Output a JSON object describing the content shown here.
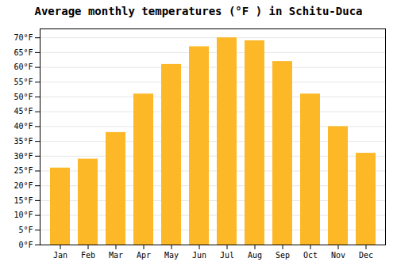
{
  "chart_data": {
    "type": "bar",
    "title": "Average monthly temperatures (°F ) in Schitu-Duca",
    "categories": [
      "Jan",
      "Feb",
      "Mar",
      "Apr",
      "May",
      "Jun",
      "Jul",
      "Aug",
      "Sep",
      "Oct",
      "Nov",
      "Dec"
    ],
    "values": [
      26,
      29,
      38,
      51,
      61,
      67,
      70,
      69,
      62,
      51,
      40,
      31
    ],
    "color": "#FDB827",
    "ylim": [
      0,
      73
    ],
    "yticks": [
      {
        "value": 0,
        "label": "0°F"
      },
      {
        "value": 5,
        "label": "5°F"
      },
      {
        "value": 10,
        "label": "10°F"
      },
      {
        "value": 15,
        "label": "15°F"
      },
      {
        "value": 20,
        "label": "20°F"
      },
      {
        "value": 25,
        "label": "25°F"
      },
      {
        "value": 30,
        "label": "30°F"
      },
      {
        "value": 35,
        "label": "35°F"
      },
      {
        "value": 40,
        "label": "40°F"
      },
      {
        "value": 45,
        "label": "45°F"
      },
      {
        "value": 50,
        "label": "50°F"
      },
      {
        "value": 55,
        "label": "55°F"
      },
      {
        "value": 60,
        "label": "60°F"
      },
      {
        "value": 65,
        "label": "65°F"
      },
      {
        "value": 70,
        "label": "70°F"
      }
    ],
    "grid": true
  }
}
